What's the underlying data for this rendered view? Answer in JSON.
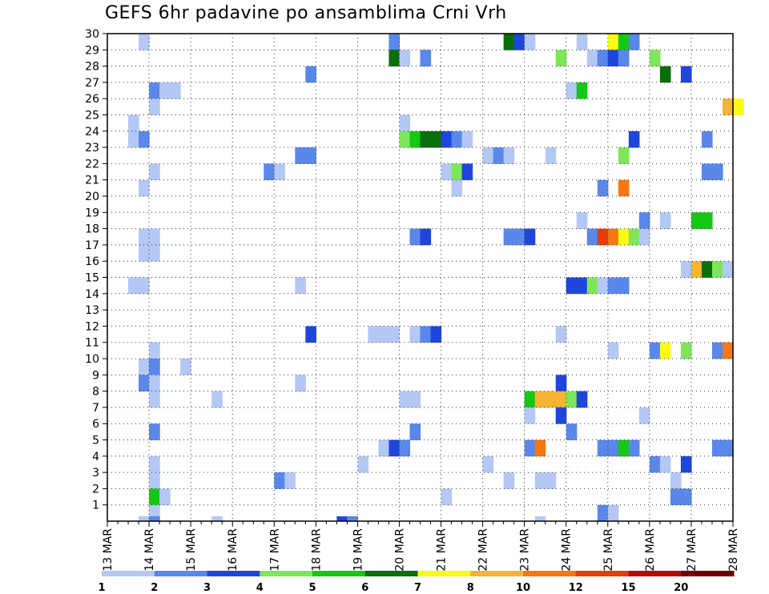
{
  "chart_data": {
    "type": "heatmap",
    "title": "GEFS 6hr padavine po ansamblima Crni Vrh",
    "xlabel": "",
    "ylabel": "",
    "x_start_date": "13 MAR",
    "x_tick_labels": [
      "13 MAR",
      "14 MAR",
      "15 MAR",
      "16 MAR",
      "17 MAR",
      "18 MAR",
      "19 MAR",
      "20 MAR",
      "21 MAR",
      "22 MAR",
      "23 MAR",
      "24 MAR",
      "25 MAR",
      "26 MAR",
      "27 MAR",
      "28 MAR"
    ],
    "y_tick_labels": [
      "1",
      "2",
      "3",
      "4",
      "5",
      "6",
      "7",
      "8",
      "9",
      "10",
      "11",
      "12",
      "13",
      "14",
      "15",
      "16",
      "17",
      "18",
      "19",
      "20",
      "21",
      "22",
      "23",
      "24",
      "25",
      "26",
      "27",
      "28",
      "29",
      "30"
    ],
    "ylim": [
      0,
      30
    ],
    "grid": true,
    "legend": {
      "placement": "bottom",
      "labels": [
        "1",
        "2",
        "3",
        "4",
        "5",
        "6",
        "7",
        "8",
        "10",
        "12",
        "15",
        "20"
      ],
      "colors": [
        "#b4c8f5",
        "#5a87ea",
        "#1f46dc",
        "#7ee65a",
        "#14c814",
        "#0a6e0a",
        "#fafa14",
        "#f5b432",
        "#f57814",
        "#e63c0a",
        "#b40a0a",
        "#6e0000"
      ]
    },
    "cells": [
      [
        1,
        1.0,
        0
      ],
      [
        2,
        1.0,
        0
      ],
      [
        2,
        1.0,
        2
      ],
      [
        3,
        1.0,
        4
      ],
      [
        2,
        2.0,
        0
      ],
      [
        3,
        1.5,
        0
      ],
      [
        4,
        2.0,
        1
      ],
      [
        3,
        2.0,
        1
      ],
      [
        3,
        2.25,
        1
      ],
      [
        3,
        3.0,
        1
      ],
      [
        3,
        2.75,
        1
      ],
      [
        1,
        2.5,
        5
      ],
      [
        1,
        2.0,
        9
      ],
      [
        1,
        2.5,
        10
      ],
      [
        1,
        3.0,
        10
      ],
      [
        1,
        2.25,
        13
      ],
      [
        1,
        2.75,
        13
      ],
      [
        1,
        3.0,
        17
      ],
      [
        1,
        3.25,
        17
      ],
      [
        1,
        4.0,
        17
      ],
      [
        1,
        5.0,
        17
      ],
      [
        1,
        6.0,
        17
      ],
      [
        1,
        7.0,
        17
      ],
      [
        1,
        8.0,
        17
      ],
      [
        1,
        9.0,
        17
      ],
      [
        1,
        10.0,
        17
      ],
      [
        1,
        11.0,
        17
      ],
      [
        1,
        12.0,
        17
      ],
      [
        1,
        14.0,
        17
      ],
      [
        1,
        15.0,
        17
      ],
      [
        1,
        16.0,
        17
      ],
      [
        1,
        17.0,
        17
      ],
      [
        1,
        18.0,
        17
      ],
      [
        1,
        19.0,
        17
      ],
      [
        1,
        21.0,
        17
      ],
      [
        1,
        23.0,
        17
      ],
      [
        1,
        24.0,
        17
      ],
      [
        1,
        25.0,
        17
      ],
      [
        1,
        26.0,
        17
      ],
      [
        1,
        27.0,
        17
      ],
      [
        1,
        28.0,
        17
      ],
      [
        1,
        29.0,
        17
      ],
      [
        1,
        30.0,
        17
      ],
      [
        1,
        1.75,
        17
      ],
      [
        1,
        1.25,
        0
      ]
    ],
    "cells_rows": [
      {
        "y": 30,
        "x": [
          1.0,
          7.0,
          9.75,
          10.25,
          10.5,
          12.25,
          13.0,
          13.25,
          13.5
        ]
      },
      {
        "y": 30,
        "v": [
          1,
          2,
          6,
          3,
          1,
          1,
          7,
          5,
          1
        ]
      }
    ]
  }
}
